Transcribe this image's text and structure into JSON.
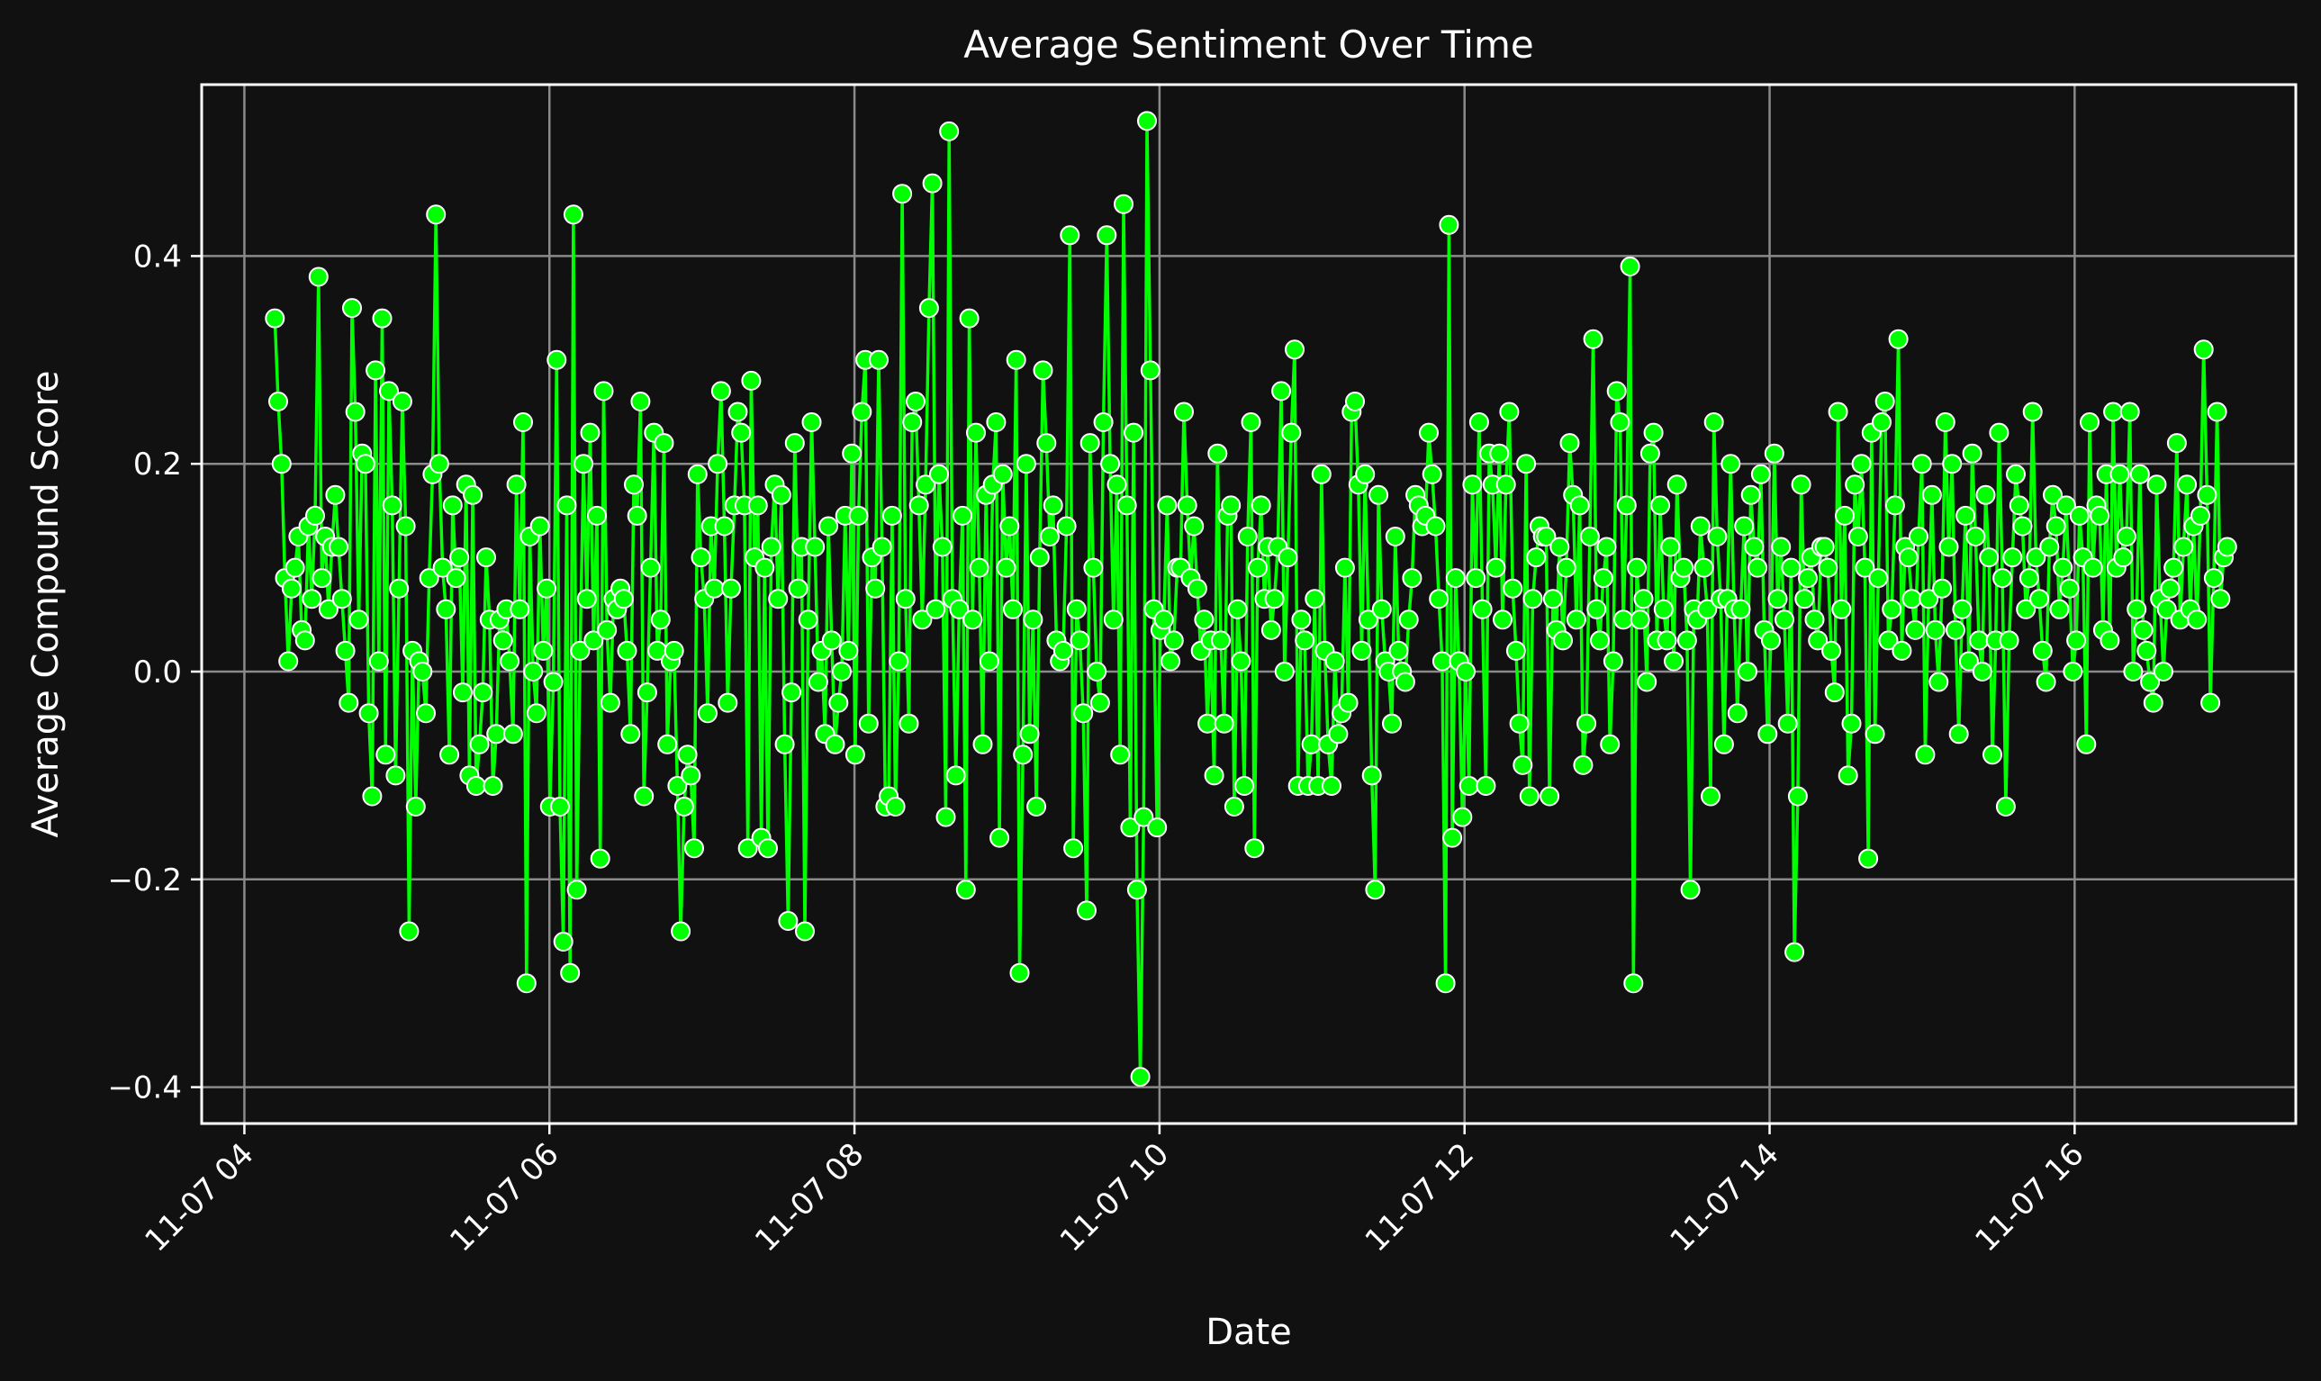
{
  "chart_data": {
    "type": "line",
    "title": "Average Sentiment Over Time",
    "xlabel": "Date",
    "ylabel": "Average Compound Score",
    "x_tick_labels": [
      "11-07 04",
      "11-07 06",
      "11-07 08",
      "11-07 10",
      "11-07 12",
      "11-07 14",
      "11-07 16"
    ],
    "x_tick_hours": [
      4,
      6,
      8,
      10,
      12,
      14,
      16
    ],
    "y_tick_labels": [
      "−0.4",
      "−0.2",
      "0.0",
      "0.2",
      "0.4"
    ],
    "y_tick_values": [
      -0.4,
      -0.2,
      0.0,
      0.2,
      0.4
    ],
    "xlim_hours": [
      3.72,
      17.45
    ],
    "ylim": [
      -0.435,
      0.565
    ],
    "x_start_hour": 4.2,
    "x_end_hour": 17.0,
    "grid": true,
    "line_color": "#00ff00",
    "marker_fill": "#00ff00",
    "marker_edge": "#ffffff",
    "background": "#111111",
    "series": [
      {
        "values": [
          0.34,
          0.26,
          0.2,
          0.09,
          0.01,
          0.08,
          0.1,
          0.13,
          0.04,
          0.03,
          0.14,
          0.07,
          0.15,
          0.38,
          0.09,
          0.13,
          0.06,
          0.12,
          0.17,
          0.12,
          0.07,
          0.02,
          -0.03,
          0.35,
          0.25,
          0.05,
          0.21,
          0.2,
          -0.04,
          -0.12,
          0.29,
          0.01,
          0.34,
          -0.08,
          0.27,
          0.16,
          -0.1,
          0.08,
          0.26,
          0.14,
          -0.25,
          0.02,
          -0.13,
          0.01,
          0.0,
          -0.04,
          0.09,
          0.19,
          0.44,
          0.2,
          0.1,
          0.06,
          -0.08,
          0.16,
          0.09,
          0.11,
          -0.02,
          0.18,
          -0.1,
          0.17,
          -0.11,
          -0.07,
          -0.02,
          0.11,
          0.05,
          -0.11,
          -0.06,
          0.05,
          0.03,
          0.06,
          0.01,
          -0.06,
          0.18,
          0.06,
          0.24,
          -0.3,
          0.13,
          0.0,
          -0.04,
          0.14,
          0.02,
          0.08,
          -0.13,
          -0.01,
          0.3,
          -0.13,
          -0.26,
          0.16,
          -0.29,
          0.44,
          -0.21,
          0.02,
          0.2,
          0.07,
          0.23,
          0.03,
          0.15,
          -0.18,
          0.27,
          0.04,
          -0.03,
          0.07,
          0.06,
          0.08,
          0.07,
          0.02,
          -0.06,
          0.18,
          0.15,
          0.26,
          -0.12,
          -0.02,
          0.1,
          0.23,
          0.02,
          0.05,
          0.22,
          -0.07,
          0.01,
          0.02,
          -0.11,
          -0.25,
          -0.13,
          -0.08,
          -0.1,
          -0.17,
          0.19,
          0.11,
          0.07,
          -0.04,
          0.14,
          0.08,
          0.2,
          0.27,
          0.14,
          -0.03,
          0.08,
          0.16,
          0.25,
          0.23,
          0.16,
          -0.17,
          0.28,
          0.11,
          0.16,
          -0.16,
          0.1,
          -0.17,
          0.12,
          0.18,
          0.07,
          0.17,
          -0.07,
          -0.24,
          -0.02,
          0.22,
          0.08,
          0.12,
          -0.25,
          0.05,
          0.24,
          0.12,
          -0.01,
          0.02,
          -0.06,
          0.14,
          0.03,
          -0.07,
          -0.03,
          0.0,
          0.15,
          0.02,
          0.21,
          -0.08,
          0.15,
          0.25,
          0.3,
          -0.05,
          0.11,
          0.08,
          0.3,
          0.12,
          -0.13,
          -0.12,
          0.15,
          -0.13,
          0.01,
          0.46,
          0.07,
          -0.05,
          0.24,
          0.26,
          0.16,
          0.05,
          0.18,
          0.35,
          0.47,
          0.06,
          0.19,
          0.12,
          -0.14,
          0.52,
          0.07,
          -0.1,
          0.06,
          0.15,
          -0.21,
          0.34,
          0.05,
          0.23,
          0.1,
          -0.07,
          0.17,
          0.01,
          0.18,
          0.24,
          -0.16,
          0.19,
          0.1,
          0.14,
          0.06,
          0.3,
          -0.29,
          -0.08,
          0.2,
          -0.06,
          0.05,
          -0.13,
          0.11,
          0.29,
          0.22,
          0.13,
          0.16,
          0.03,
          0.01,
          0.02,
          0.14,
          0.42,
          -0.17,
          0.06,
          0.03,
          -0.04,
          -0.23,
          0.22,
          0.1,
          0.0,
          -0.03,
          0.24,
          0.42,
          0.2,
          0.05,
          0.18,
          -0.08,
          0.45,
          0.16,
          -0.15,
          0.23,
          -0.21,
          -0.39,
          -0.14,
          0.53,
          0.29,
          0.06,
          -0.15,
          0.04,
          0.05,
          0.16,
          0.01,
          0.03,
          0.1,
          0.1,
          0.25,
          0.16,
          0.09,
          0.14,
          0.08,
          0.02,
          0.05,
          -0.05,
          0.03,
          -0.1,
          0.21,
          0.03,
          -0.05,
          0.15,
          0.16,
          -0.13,
          0.06,
          0.01,
          -0.11,
          0.13,
          0.24,
          -0.17,
          0.1,
          0.16,
          0.07,
          0.12,
          0.04,
          0.07,
          0.12,
          0.27,
          0.0,
          0.11,
          0.23,
          0.31,
          -0.11,
          0.05,
          0.03,
          -0.11,
          -0.07,
          0.07,
          -0.11,
          0.19,
          0.02,
          -0.07,
          -0.11,
          0.01,
          -0.06,
          -0.04,
          0.1,
          -0.03,
          0.25,
          0.26,
          0.18,
          0.02,
          0.19,
          0.05,
          -0.1,
          -0.21,
          0.17,
          0.06,
          0.01,
          0.0,
          -0.05,
          0.13,
          0.02,
          0.0,
          -0.01,
          0.05,
          0.09,
          0.17,
          0.16,
          0.14,
          0.15,
          0.23,
          0.19,
          0.14,
          0.07,
          0.01,
          -0.3,
          0.43,
          -0.16,
          0.09,
          0.01,
          -0.14,
          0.0,
          -0.11,
          0.18,
          0.09,
          0.24,
          0.06,
          -0.11,
          0.21,
          0.18,
          0.1,
          0.21,
          0.05,
          0.18,
          0.25,
          0.08,
          0.02,
          -0.05,
          -0.09,
          0.2,
          -0.12,
          0.07,
          0.11,
          0.14,
          0.13,
          0.13,
          -0.12,
          0.07,
          0.04,
          0.12,
          0.03,
          0.1,
          0.22,
          0.17,
          0.05,
          0.16,
          -0.09,
          -0.05,
          0.13,
          0.32,
          0.06,
          0.03,
          0.09,
          0.12,
          -0.07,
          0.01,
          0.27,
          0.24,
          0.05,
          0.16,
          0.39,
          -0.3,
          0.1,
          0.05,
          0.07,
          -0.01,
          0.21,
          0.23,
          0.03,
          0.16,
          0.06,
          0.03,
          0.12,
          0.01,
          0.18,
          0.09,
          0.1,
          0.03,
          -0.21,
          0.06,
          0.05,
          0.14,
          0.1,
          0.06,
          -0.12,
          0.24,
          0.13,
          0.07,
          -0.07,
          0.07,
          0.2,
          0.06,
          -0.04,
          0.06,
          0.14,
          0.0,
          0.17,
          0.12,
          0.1,
          0.19,
          0.04,
          -0.06,
          0.03,
          0.21,
          0.07,
          0.12,
          0.05,
          -0.05,
          0.1,
          -0.27,
          -0.12,
          0.18,
          0.07,
          0.09,
          0.11,
          0.05,
          0.03,
          0.12,
          0.12,
          0.1,
          0.02,
          -0.02,
          0.25,
          0.06,
          0.15,
          -0.1,
          -0.05,
          0.18,
          0.13,
          0.2,
          0.1,
          -0.18,
          0.23,
          -0.06,
          0.09,
          0.24,
          0.26,
          0.03,
          0.06,
          0.16,
          0.32,
          0.02,
          0.12,
          0.11,
          0.07,
          0.04,
          0.13,
          0.2,
          -0.08,
          0.07,
          0.17,
          0.04,
          -0.01,
          0.08,
          0.24,
          0.12,
          0.2,
          0.04,
          -0.06,
          0.06,
          0.15,
          0.01,
          0.21,
          0.13,
          0.03,
          0.0,
          0.17,
          0.11,
          -0.08,
          0.03,
          0.23,
          0.09,
          -0.13,
          0.03,
          0.11,
          0.19,
          0.16,
          0.14,
          0.06,
          0.09,
          0.25,
          0.11,
          0.07,
          0.02,
          -0.01,
          0.12,
          0.17,
          0.14,
          0.06,
          0.1,
          0.16,
          0.08,
          0.0,
          0.03,
          0.15,
          0.11,
          -0.07,
          0.24,
          0.1,
          0.16,
          0.15,
          0.04,
          0.19,
          0.03,
          0.25,
          0.1,
          0.19,
          0.11,
          0.13,
          0.25,
          0.0,
          0.06,
          0.19,
          0.04,
          0.02,
          -0.01,
          -0.03,
          0.18,
          0.07,
          0.0,
          0.06,
          0.08,
          0.1,
          0.22,
          0.05,
          0.12,
          0.18,
          0.06,
          0.14,
          0.05,
          0.15,
          0.31,
          0.17,
          -0.03,
          0.09,
          0.25,
          0.07,
          0.11,
          0.12
        ]
      }
    ]
  }
}
